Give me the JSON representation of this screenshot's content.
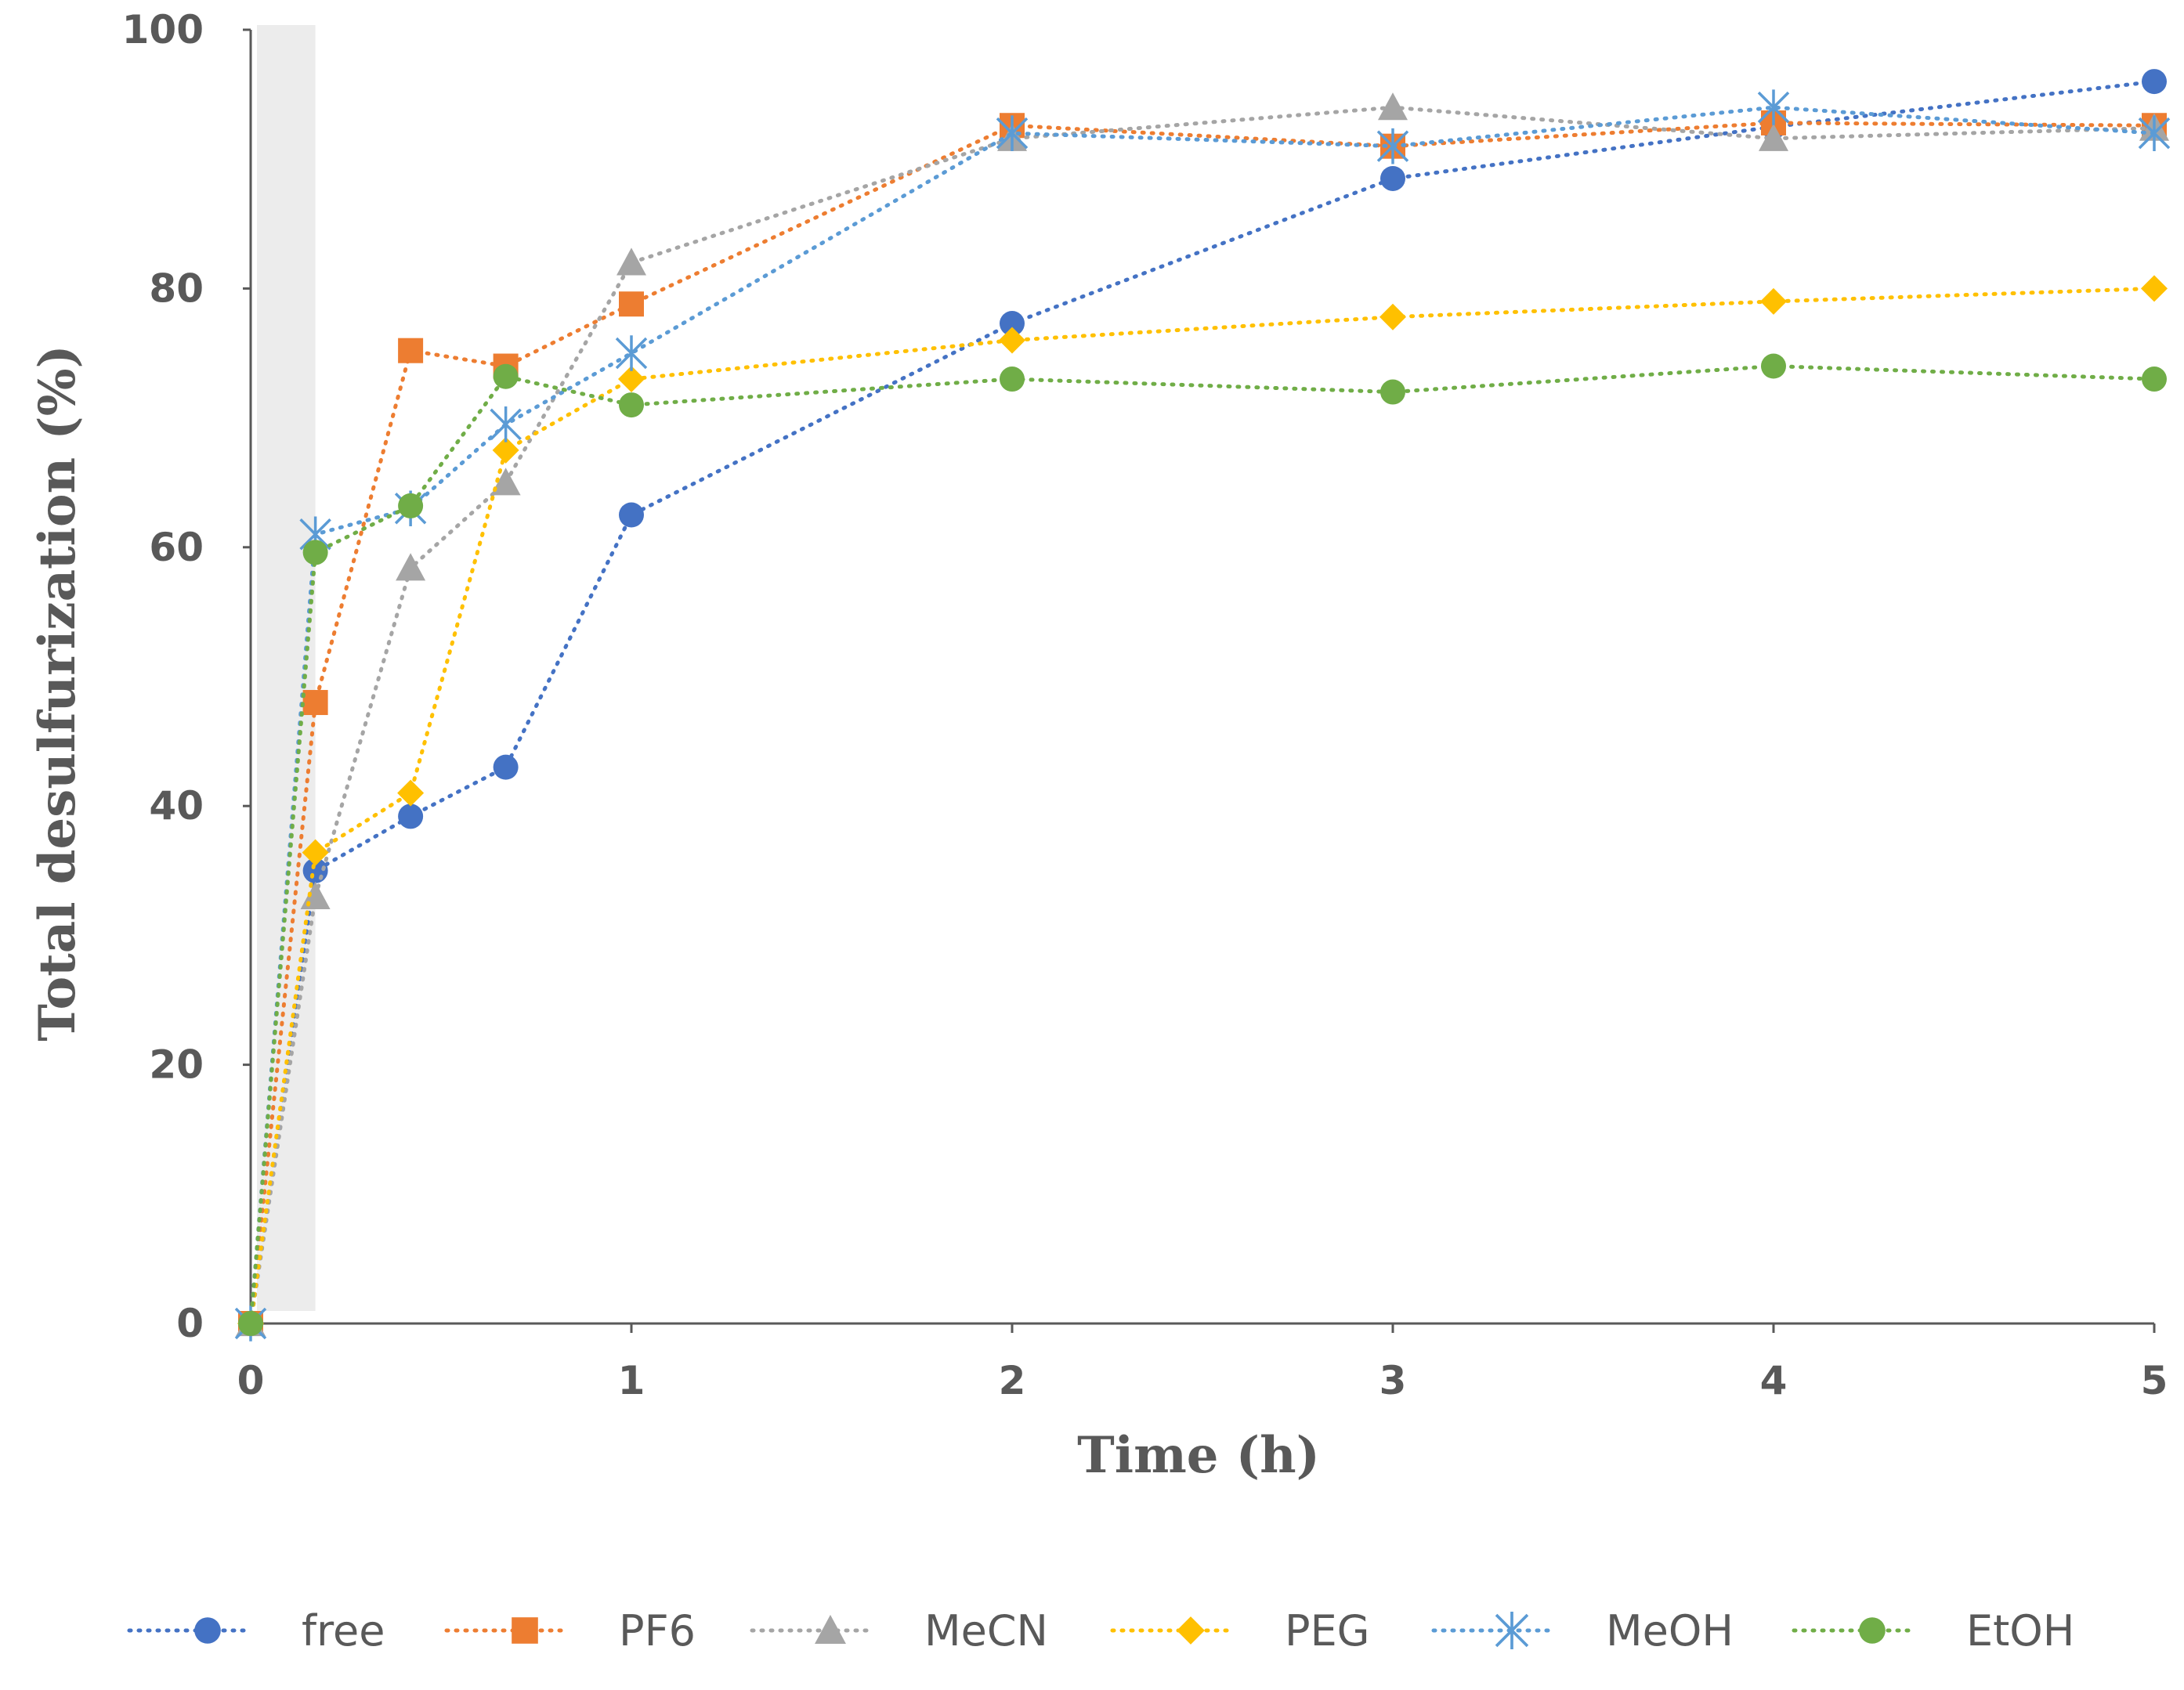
{
  "chart_data": {
    "type": "line",
    "xlabel": "Time (h)",
    "ylabel": "Total desulfurization (%)",
    "xlim": [
      0,
      5
    ],
    "ylim": [
      0,
      100
    ],
    "xticks": [
      "0",
      "1",
      "2",
      "3",
      "4",
      "5"
    ],
    "yticks": [
      "0",
      "20",
      "40",
      "60",
      "80",
      "100"
    ],
    "shaded_region": [
      0,
      0.17
    ],
    "legend_position": "bottom",
    "line_style": "dotted",
    "series": [
      {
        "name": "free",
        "color": "#4472C4",
        "marker": "circle",
        "x": [
          0,
          0.17,
          0.42,
          0.67,
          1,
          2,
          3,
          4,
          5
        ],
        "y": [
          0,
          35,
          39.2,
          43,
          62.5,
          77.3,
          88.5,
          92.5,
          96
        ]
      },
      {
        "name": "PF6",
        "color": "#ED7D31",
        "marker": "square",
        "x": [
          0,
          0.17,
          0.42,
          0.67,
          1,
          2,
          3,
          4,
          5
        ],
        "y": [
          0,
          48,
          75.2,
          74,
          78.8,
          92.6,
          91,
          92.8,
          92.6
        ]
      },
      {
        "name": "MeCN",
        "color": "#A5A5A5",
        "marker": "triangle",
        "x": [
          0,
          0.17,
          0.42,
          0.67,
          1,
          2,
          3,
          4,
          5
        ],
        "y": [
          0,
          33,
          58.4,
          65,
          82,
          91.6,
          94,
          91.6,
          92.4
        ]
      },
      {
        "name": "PEG",
        "color": "#FFC000",
        "marker": "diamond",
        "x": [
          0,
          0.17,
          0.42,
          0.67,
          1,
          2,
          3,
          4,
          5
        ],
        "y": [
          0,
          36.4,
          41,
          67.5,
          73,
          76,
          77.8,
          79,
          80
        ]
      },
      {
        "name": "MeOH",
        "color": "#5B9BD5",
        "marker": "asterisk",
        "x": [
          0,
          0.17,
          0.42,
          0.67,
          1,
          2,
          3,
          4,
          5
        ],
        "y": [
          0,
          61,
          63,
          69.5,
          75,
          92,
          91,
          94,
          92
        ]
      },
      {
        "name": "EtOH",
        "color": "#70AD47",
        "marker": "circle",
        "x": [
          0,
          0.17,
          0.42,
          0.67,
          1,
          2,
          3,
          4,
          5
        ],
        "y": [
          0,
          59.6,
          63.2,
          73.2,
          71,
          73,
          72,
          74,
          73
        ]
      }
    ]
  }
}
